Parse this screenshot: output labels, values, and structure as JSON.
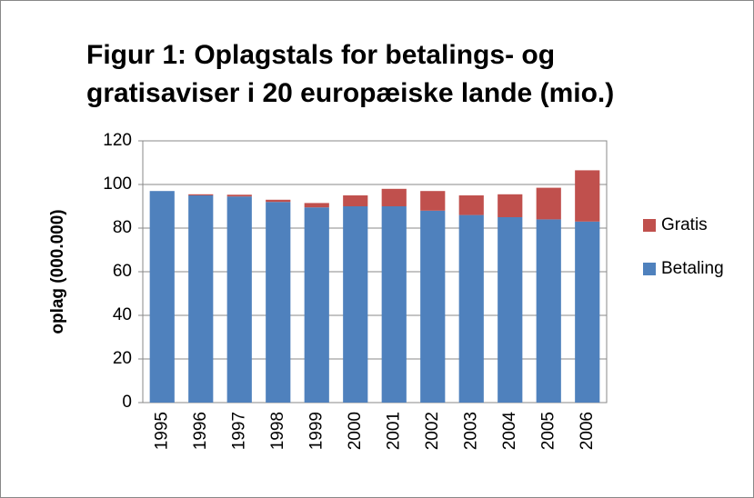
{
  "chart_data": {
    "type": "stacked_bar",
    "title": [
      "Figur 1: Oplagstals for betalings- og",
      "gratisaviser i 20 europæiske lande (mio.)"
    ],
    "y_label": "oplag (000.000)",
    "categories": [
      "1995",
      "1996",
      "1997",
      "1998",
      "1999",
      "2000",
      "2001",
      "2002",
      "2003",
      "2004",
      "2005",
      "2006"
    ],
    "series": [
      {
        "name": "Betaling",
        "color": "#4f81bd",
        "values": [
          97,
          95,
          94.5,
          92,
          89.5,
          90,
          90,
          88,
          86,
          85,
          84,
          83
        ]
      },
      {
        "name": "Gratis",
        "color": "#c0504d",
        "values": [
          0,
          0.5,
          0.8,
          1,
          2,
          5,
          8,
          9,
          9,
          10.5,
          14.5,
          23.5
        ]
      }
    ],
    "ylim": [
      0,
      120
    ],
    "yticks": [
      0,
      20,
      40,
      60,
      80,
      100,
      120
    ],
    "grid": true,
    "legend": "right"
  }
}
